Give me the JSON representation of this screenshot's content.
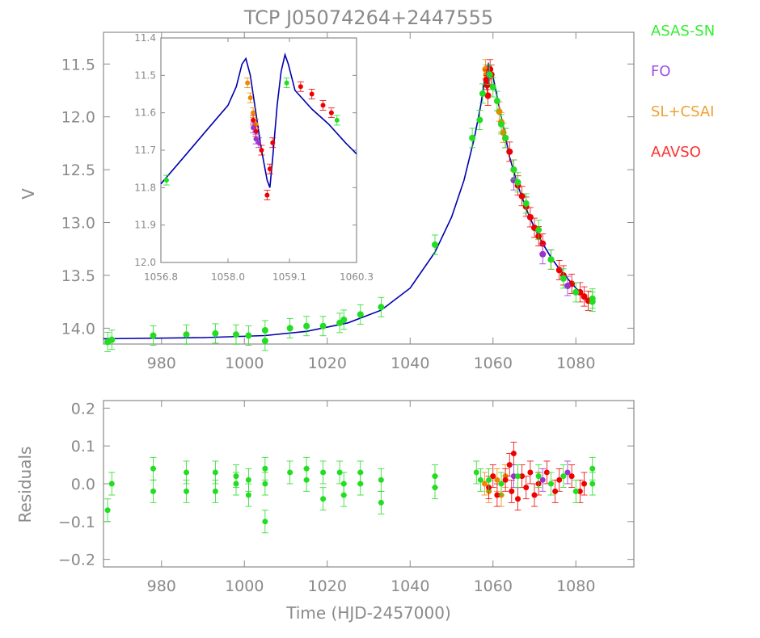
{
  "title": "TCP J05074264+2447555",
  "legend": [
    {
      "label": "ASAS-SN",
      "color": "#33ee33"
    },
    {
      "label": "FO",
      "color": "#a050e0"
    },
    {
      "label": "SL+CSAI",
      "color": "#f0a030"
    },
    {
      "label": "AAVSO",
      "color": "#ff3030"
    }
  ],
  "colors": {
    "model": "#0000b0",
    "frame": "#8a8a8a",
    "asassn": "#22dd22",
    "fo": "#9933cc",
    "slcsai": "#ee8800",
    "aavso": "#ee0000"
  },
  "chart_data": [
    {
      "type": "scatter",
      "name": "main",
      "ylabel": "V",
      "xlim": [
        966,
        1094
      ],
      "ylim": [
        14.15,
        11.2
      ],
      "xticks": [
        980,
        1000,
        1020,
        1040,
        1060,
        1080
      ],
      "xtick_labels": [
        "980",
        "1000",
        "1020",
        "1040",
        "1060",
        "1080"
      ],
      "yticks": [
        11.5,
        12.0,
        12.5,
        13.0,
        13.5,
        14.0
      ],
      "ytick_labels": [
        "11.5",
        "12.0",
        "12.5",
        "13.0",
        "13.5",
        "14.0"
      ],
      "y_inverted": true,
      "model_curve": [
        [
          966,
          14.1
        ],
        [
          990,
          14.09
        ],
        [
          1005,
          14.07
        ],
        [
          1015,
          14.03
        ],
        [
          1025,
          13.95
        ],
        [
          1033,
          13.83
        ],
        [
          1040,
          13.62
        ],
        [
          1046,
          13.28
        ],
        [
          1050,
          12.95
        ],
        [
          1053,
          12.6
        ],
        [
          1055.5,
          12.2
        ],
        [
          1057,
          11.9
        ],
        [
          1058,
          11.65
        ],
        [
          1058.9,
          11.5
        ],
        [
          1060,
          11.62
        ],
        [
          1062,
          12.0
        ],
        [
          1064,
          12.38
        ],
        [
          1066,
          12.65
        ],
        [
          1068,
          12.87
        ],
        [
          1070,
          13.05
        ],
        [
          1072,
          13.2
        ],
        [
          1074,
          13.33
        ],
        [
          1076,
          13.44
        ],
        [
          1078,
          13.53
        ],
        [
          1080,
          13.62
        ],
        [
          1082,
          13.7
        ],
        [
          1084,
          13.76
        ]
      ],
      "asassn": [
        [
          967,
          14.13
        ],
        [
          968,
          14.11
        ],
        [
          978,
          14.07
        ],
        [
          986,
          14.06
        ],
        [
          993,
          14.05
        ],
        [
          998,
          14.06
        ],
        [
          1001,
          14.07
        ],
        [
          1005,
          14.12
        ],
        [
          1005,
          14.02
        ],
        [
          1011,
          14.0
        ],
        [
          1015,
          13.98
        ],
        [
          1019,
          13.98
        ],
        [
          1023,
          13.95
        ],
        [
          1024,
          13.92
        ],
        [
          1028,
          13.87
        ],
        [
          1033,
          13.8
        ],
        [
          1046,
          13.21
        ],
        [
          1055,
          12.2
        ],
        [
          1056.8,
          12.03
        ],
        [
          1057.5,
          11.78
        ],
        [
          1059.2,
          11.6
        ],
        [
          1060,
          11.72
        ],
        [
          1061,
          11.85
        ],
        [
          1062,
          12.07
        ],
        [
          1063,
          12.2
        ],
        [
          1065,
          12.5
        ],
        [
          1066,
          12.62
        ],
        [
          1068,
          12.82
        ],
        [
          1071,
          13.07
        ],
        [
          1074,
          13.35
        ],
        [
          1077,
          13.53
        ],
        [
          1080,
          13.66
        ],
        [
          1084,
          13.72
        ],
        [
          1084,
          13.75
        ]
      ],
      "fo": [
        [
          1059.0,
          11.6
        ],
        [
          1065,
          12.6
        ],
        [
          1072,
          13.3
        ],
        [
          1078,
          13.6
        ]
      ],
      "slcsai": [
        [
          1058.2,
          11.55
        ],
        [
          1058.4,
          11.6
        ],
        [
          1058.6,
          11.65
        ],
        [
          1061.5,
          11.95
        ],
        [
          1062,
          12.05
        ],
        [
          1062.5,
          12.15
        ]
      ],
      "aavso": [
        [
          1058.4,
          11.65
        ],
        [
          1058.6,
          11.7
        ],
        [
          1058.8,
          11.8
        ],
        [
          1059.3,
          11.55
        ],
        [
          1059.6,
          11.6
        ],
        [
          1063,
          12.2
        ],
        [
          1064,
          12.33
        ],
        [
          1065,
          12.5
        ],
        [
          1066,
          12.65
        ],
        [
          1067,
          12.75
        ],
        [
          1068,
          12.85
        ],
        [
          1069,
          12.95
        ],
        [
          1070,
          13.05
        ],
        [
          1071,
          13.13
        ],
        [
          1072,
          13.2
        ],
        [
          1074,
          13.35
        ],
        [
          1076,
          13.45
        ],
        [
          1077,
          13.5
        ],
        [
          1079,
          13.58
        ],
        [
          1081,
          13.66
        ],
        [
          1082,
          13.7
        ],
        [
          1083,
          13.74
        ]
      ]
    },
    {
      "type": "scatter",
      "name": "inset",
      "xlim": [
        1056.8,
        1060.3
      ],
      "ylim": [
        12.0,
        11.4
      ],
      "xticks": [
        1056.8,
        1058.0,
        1059.1,
        1060.3
      ],
      "xtick_labels": [
        "1056.8",
        "1058.0",
        "1059.1",
        "1060.3"
      ],
      "yticks": [
        11.4,
        11.5,
        11.6,
        11.7,
        11.8,
        11.9,
        12.0
      ],
      "ytick_labels": [
        "11.4",
        "11.5",
        "11.6",
        "11.7",
        "11.8",
        "11.9",
        "12.0"
      ],
      "y_inverted": true,
      "model_curve": [
        [
          1056.8,
          11.79
        ],
        [
          1057.2,
          11.72
        ],
        [
          1057.6,
          11.65
        ],
        [
          1058.0,
          11.58
        ],
        [
          1058.15,
          11.53
        ],
        [
          1058.25,
          11.47
        ],
        [
          1058.32,
          11.455
        ],
        [
          1058.4,
          11.5
        ],
        [
          1058.5,
          11.6
        ],
        [
          1058.6,
          11.7
        ],
        [
          1058.7,
          11.78
        ],
        [
          1058.75,
          11.8
        ],
        [
          1058.8,
          11.72
        ],
        [
          1058.88,
          11.58
        ],
        [
          1058.95,
          11.49
        ],
        [
          1059.02,
          11.445
        ],
        [
          1059.08,
          11.47
        ],
        [
          1059.2,
          11.54
        ],
        [
          1059.5,
          11.59
        ],
        [
          1059.8,
          11.63
        ],
        [
          1060.1,
          11.68
        ],
        [
          1060.3,
          11.71
        ]
      ],
      "asassn": [
        [
          1056.9,
          11.78
        ],
        [
          1059.05,
          11.52
        ],
        [
          1059.95,
          11.62
        ]
      ],
      "fo": [
        [
          1058.45,
          11.64
        ],
        [
          1058.5,
          11.67
        ],
        [
          1058.55,
          11.68
        ]
      ],
      "slcsai": [
        [
          1058.35,
          11.52
        ],
        [
          1058.4,
          11.56
        ],
        [
          1058.45,
          11.6
        ],
        [
          1058.5,
          11.63
        ]
      ],
      "aavso": [
        [
          1058.45,
          11.62
        ],
        [
          1058.5,
          11.65
        ],
        [
          1058.6,
          11.7
        ],
        [
          1058.7,
          11.82
        ],
        [
          1058.75,
          11.75
        ],
        [
          1058.8,
          11.68
        ],
        [
          1059.3,
          11.53
        ],
        [
          1059.5,
          11.55
        ],
        [
          1059.7,
          11.58
        ],
        [
          1059.85,
          11.6
        ]
      ]
    },
    {
      "type": "scatter",
      "name": "residuals",
      "xlabel": "Time (HJD-2457000)",
      "ylabel": "Residuals",
      "xlim": [
        966,
        1094
      ],
      "ylim": [
        -0.22,
        0.22
      ],
      "xticks": [
        980,
        1000,
        1020,
        1040,
        1060,
        1080
      ],
      "xtick_labels": [
        "980",
        "1000",
        "1020",
        "1040",
        "1060",
        "1080"
      ],
      "yticks": [
        0.2,
        0.1,
        0.0,
        -0.1,
        -0.2
      ],
      "ytick_labels": [
        "0.2",
        "0.1",
        "0.0",
        "−0.1",
        "−0.2"
      ],
      "asassn": [
        [
          967,
          -0.07
        ],
        [
          968,
          0.0
        ],
        [
          978,
          0.04
        ],
        [
          978,
          -0.02
        ],
        [
          986,
          0.03
        ],
        [
          986,
          -0.02
        ],
        [
          993,
          0.03
        ],
        [
          993,
          -0.02
        ],
        [
          998,
          0.02
        ],
        [
          998,
          0.0
        ],
        [
          1001,
          0.01
        ],
        [
          1001,
          -0.03
        ],
        [
          1005,
          0.04
        ],
        [
          1005,
          0.0
        ],
        [
          1005,
          -0.1
        ],
        [
          1011,
          0.03
        ],
        [
          1015,
          0.04
        ],
        [
          1015,
          0.01
        ],
        [
          1019,
          0.03
        ],
        [
          1019,
          -0.04
        ],
        [
          1023,
          0.03
        ],
        [
          1024,
          0.0
        ],
        [
          1024,
          -0.03
        ],
        [
          1028,
          0.03
        ],
        [
          1028,
          0.0
        ],
        [
          1033,
          0.01
        ],
        [
          1033,
          -0.05
        ],
        [
          1046,
          0.02
        ],
        [
          1046,
          -0.01
        ],
        [
          1056,
          0.03
        ],
        [
          1057,
          0.01
        ],
        [
          1059,
          0.01
        ],
        [
          1062,
          0.0
        ],
        [
          1066,
          0.02
        ],
        [
          1071,
          0.02
        ],
        [
          1074,
          0.0
        ],
        [
          1077,
          0.02
        ],
        [
          1080,
          -0.02
        ],
        [
          1084,
          0.04
        ],
        [
          1084,
          0.0
        ]
      ],
      "fo": [
        [
          1065,
          0.02
        ],
        [
          1072,
          0.01
        ],
        [
          1078,
          0.03
        ]
      ],
      "slcsai": [
        [
          1058,
          0.0
        ],
        [
          1059,
          -0.02
        ],
        [
          1061,
          0.01
        ],
        [
          1062,
          -0.03
        ],
        [
          1063,
          0.02
        ]
      ],
      "aavso": [
        [
          1059,
          -0.01
        ],
        [
          1060,
          0.02
        ],
        [
          1061,
          -0.03
        ],
        [
          1063,
          0.01
        ],
        [
          1064,
          0.05
        ],
        [
          1064.5,
          -0.02
        ],
        [
          1065,
          0.08
        ],
        [
          1066,
          -0.04
        ],
        [
          1067,
          0.02
        ],
        [
          1068,
          -0.01
        ],
        [
          1069,
          0.03
        ],
        [
          1070,
          -0.03
        ],
        [
          1071,
          0.0
        ],
        [
          1073,
          0.03
        ],
        [
          1075,
          -0.02
        ],
        [
          1076,
          0.01
        ],
        [
          1079,
          0.02
        ],
        [
          1081,
          -0.02
        ],
        [
          1082,
          0.0
        ]
      ]
    }
  ]
}
